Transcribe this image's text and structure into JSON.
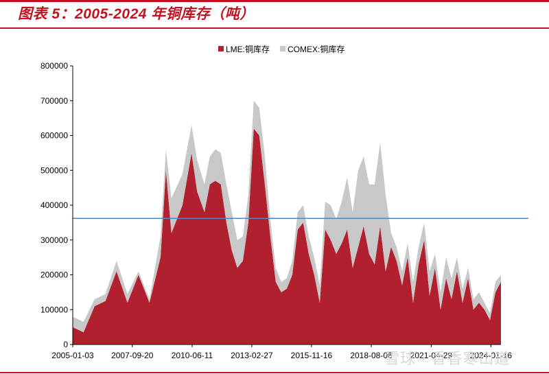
{
  "header": {
    "title": "图表 5：2005-2024 年铜库存（吨）",
    "accent_color": "#c0121f"
  },
  "watermark": {
    "text": "雪球 · 香香寒山道"
  },
  "chart_data": {
    "type": "area",
    "stacked": true,
    "title": "",
    "xlabel": "",
    "ylabel": "",
    "ylim": [
      0,
      800000
    ],
    "yticks": [
      "0",
      "100000",
      "200000",
      "300000",
      "400000",
      "500000",
      "600000",
      "700000",
      "800000"
    ],
    "xticks": [
      "2005-01-03",
      "2007-09-20",
      "2010-06-11",
      "2013-02-27",
      "2015-11-16",
      "2018-08-06",
      "2021-04-29",
      "2024-01-16"
    ],
    "x": [
      "2005-01",
      "2005-07",
      "2006-01",
      "2006-07",
      "2007-01",
      "2007-07",
      "2008-01",
      "2008-07",
      "2009-01",
      "2009-04",
      "2009-07",
      "2010-01",
      "2010-06",
      "2010-09",
      "2011-01",
      "2011-04",
      "2011-07",
      "2011-10",
      "2012-01",
      "2012-04",
      "2012-07",
      "2012-10",
      "2013-01",
      "2013-04",
      "2013-07",
      "2013-10",
      "2014-01",
      "2014-04",
      "2014-07",
      "2014-10",
      "2015-01",
      "2015-04",
      "2015-07",
      "2015-10",
      "2016-01",
      "2016-04",
      "2016-07",
      "2016-10",
      "2017-01",
      "2017-04",
      "2017-07",
      "2017-10",
      "2018-01",
      "2018-04",
      "2018-07",
      "2018-10",
      "2019-01",
      "2019-04",
      "2019-07",
      "2019-10",
      "2020-01",
      "2020-04",
      "2020-07",
      "2020-10",
      "2021-01",
      "2021-04",
      "2021-07",
      "2021-10",
      "2022-01",
      "2022-04",
      "2022-07",
      "2022-10",
      "2023-01",
      "2023-04",
      "2023-07",
      "2023-10",
      "2024-01",
      "2024-04",
      "2024-07"
    ],
    "series": [
      {
        "name": "LME:铜库存",
        "color": "#b0202e",
        "values": [
          50000,
          35000,
          110000,
          125000,
          210000,
          120000,
          200000,
          120000,
          250000,
          500000,
          320000,
          400000,
          550000,
          440000,
          380000,
          460000,
          470000,
          460000,
          350000,
          270000,
          220000,
          240000,
          350000,
          620000,
          600000,
          460000,
          310000,
          180000,
          150000,
          160000,
          200000,
          330000,
          350000,
          260000,
          200000,
          120000,
          330000,
          300000,
          260000,
          290000,
          330000,
          220000,
          280000,
          340000,
          260000,
          230000,
          340000,
          210000,
          280000,
          240000,
          170000,
          250000,
          120000,
          230000,
          300000,
          140000,
          220000,
          100000,
          190000,
          130000,
          210000,
          120000,
          190000,
          100000,
          120000,
          100000,
          70000,
          150000,
          180000
        ]
      },
      {
        "name": "COMEX:铜库存",
        "color": "#c8c8c8",
        "values": [
          30000,
          30000,
          20000,
          20000,
          30000,
          25000,
          10000,
          10000,
          60000,
          60000,
          100000,
          90000,
          80000,
          90000,
          80000,
          80000,
          90000,
          90000,
          110000,
          110000,
          80000,
          70000,
          80000,
          80000,
          80000,
          80000,
          50000,
          40000,
          30000,
          30000,
          40000,
          50000,
          50000,
          50000,
          50000,
          50000,
          80000,
          100000,
          100000,
          120000,
          150000,
          160000,
          220000,
          200000,
          200000,
          230000,
          240000,
          220000,
          40000,
          40000,
          40000,
          40000,
          60000,
          50000,
          50000,
          70000,
          40000,
          50000,
          60000,
          60000,
          40000,
          40000,
          30000,
          30000,
          30000,
          20000,
          20000,
          30000,
          20000
        ]
      }
    ],
    "reference_line": {
      "value": 362000,
      "color": "#4e86c6"
    },
    "legend_position": "top-center",
    "grid": false
  }
}
